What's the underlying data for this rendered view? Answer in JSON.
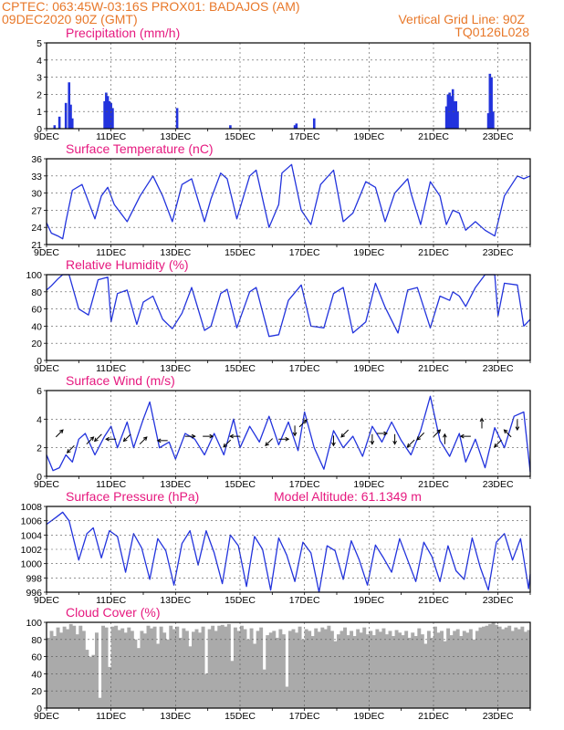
{
  "header": {
    "line1_left": "CPTEC:   063:45W-03:16S   PROX01: BADAJOS (AM)",
    "line2_left": "09DEC2020 90Z (GMT)",
    "line2_right": "Vertical Grid Line: 90Z",
    "line3_right": "TQ0126L028"
  },
  "colors": {
    "header": "#e8782a",
    "title": "#e6197f",
    "series": "#2233dd",
    "cloud": "#aaaaaa"
  },
  "chart_data": [
    {
      "type": "bar",
      "title": "Precipitation (mm/h)",
      "ylim": [
        0,
        5
      ],
      "yticks": [
        "0",
        "1",
        "2",
        "3",
        "4",
        "5"
      ],
      "xticks": [
        "9DEC",
        "11DEC",
        "13DEC",
        "15DEC",
        "17DEC",
        "19DEC",
        "21DEC",
        "23DEC"
      ],
      "x_range": [
        9,
        24
      ],
      "x": [
        9.25,
        9.4,
        9.6,
        9.7,
        9.75,
        9.8,
        10.8,
        10.85,
        10.9,
        10.95,
        11.0,
        11.05,
        13.05,
        14.7,
        16.7,
        16.75,
        17.3,
        21.4,
        21.45,
        21.5,
        21.55,
        21.6,
        21.65,
        21.7,
        21.75,
        22.7,
        22.75,
        22.8,
        22.85
      ],
      "values": [
        0.2,
        0.7,
        1.5,
        2.7,
        1.4,
        0.6,
        1.6,
        2.1,
        1.9,
        1.6,
        1.5,
        1.2,
        1.2,
        0.2,
        0.2,
        0.3,
        0.6,
        1.3,
        2.0,
        2.1,
        1.9,
        2.3,
        1.6,
        1.6,
        1.0,
        0.9,
        3.2,
        3.0,
        1.0
      ]
    },
    {
      "type": "line",
      "title": "Surface Temperature (nC)",
      "ylim": [
        21,
        36
      ],
      "yticks": [
        "21",
        "24",
        "27",
        "30",
        "33",
        "36"
      ],
      "xticks": [
        "9DEC",
        "11DEC",
        "13DEC",
        "15DEC",
        "17DEC",
        "19DEC",
        "21DEC",
        "23DEC"
      ],
      "x_range": [
        9,
        24
      ],
      "x": [
        9.0,
        9.15,
        9.35,
        9.5,
        9.6,
        9.8,
        10.1,
        10.5,
        10.7,
        10.9,
        11.1,
        11.5,
        11.9,
        12.3,
        12.6,
        12.9,
        13.2,
        13.5,
        13.9,
        14.1,
        14.4,
        14.6,
        14.9,
        15.3,
        15.5,
        15.9,
        16.2,
        16.3,
        16.6,
        16.9,
        17.2,
        17.5,
        17.9,
        18.2,
        18.5,
        18.9,
        19.2,
        19.5,
        19.8,
        20.2,
        20.3,
        20.6,
        20.9,
        21.2,
        21.4,
        21.6,
        21.8,
        22.0,
        22.3,
        22.6,
        22.9,
        23.2,
        23.6,
        23.8,
        24.0
      ],
      "values": [
        24.8,
        23.0,
        22.5,
        22.0,
        25.0,
        30.5,
        31.5,
        25.5,
        29.5,
        31.0,
        28.0,
        25.0,
        29.5,
        33.0,
        29.5,
        25.0,
        31.5,
        32.5,
        25.0,
        29.0,
        33.5,
        32.5,
        25.5,
        33.0,
        34.0,
        24.0,
        28.0,
        33.5,
        35.0,
        27.0,
        24.5,
        31.5,
        34.0,
        25.0,
        26.5,
        32.0,
        31.0,
        25.0,
        30.0,
        32.5,
        30.0,
        24.5,
        32.0,
        29.5,
        24.5,
        27.0,
        26.5,
        23.5,
        25.0,
        23.5,
        22.5,
        29.5,
        33.0,
        32.5,
        33.0
      ]
    },
    {
      "type": "line",
      "title": "Relative Humidity (%)",
      "ylim": [
        0,
        100
      ],
      "yticks": [
        "0",
        "20",
        "40",
        "60",
        "80",
        "100"
      ],
      "xticks": [
        "9DEC",
        "11DEC",
        "13DEC",
        "15DEC",
        "17DEC",
        "19DEC",
        "21DEC",
        "23DEC"
      ],
      "x_range": [
        9,
        24
      ],
      "x": [
        9.0,
        9.15,
        9.35,
        9.5,
        9.7,
        9.85,
        10.0,
        10.3,
        10.6,
        10.9,
        11.0,
        11.2,
        11.5,
        11.8,
        12.0,
        12.3,
        12.6,
        12.9,
        13.2,
        13.5,
        13.9,
        14.1,
        14.4,
        14.6,
        14.9,
        15.3,
        15.5,
        15.9,
        16.2,
        16.5,
        16.9,
        17.2,
        17.6,
        17.9,
        18.2,
        18.5,
        18.9,
        19.2,
        19.5,
        19.9,
        20.2,
        20.5,
        20.9,
        21.2,
        21.5,
        21.6,
        21.8,
        22.0,
        22.3,
        22.6,
        22.9,
        23.0,
        23.2,
        23.6,
        23.8,
        24.0
      ],
      "values": [
        82,
        87,
        95,
        100,
        100,
        80,
        60,
        53,
        94,
        97,
        45,
        78,
        82,
        42,
        68,
        75,
        48,
        37,
        55,
        85,
        35,
        40,
        78,
        83,
        38,
        80,
        85,
        28,
        30,
        70,
        88,
        40,
        38,
        78,
        85,
        32,
        45,
        90,
        62,
        32,
        82,
        85,
        38,
        75,
        70,
        80,
        75,
        63,
        85,
        100,
        100,
        52,
        90,
        88,
        40,
        48
      ]
    },
    {
      "type": "line",
      "title": "Surface Wind (m/s)",
      "ylim": [
        0,
        6
      ],
      "yticks": [
        "0",
        "2",
        "4",
        "6"
      ],
      "xticks": [
        "9DEC",
        "11DEC",
        "13DEC",
        "15DEC",
        "17DEC",
        "19DEC",
        "21DEC",
        "23DEC"
      ],
      "x_range": [
        9,
        24
      ],
      "x": [
        9.0,
        9.2,
        9.4,
        9.6,
        9.8,
        10.0,
        10.2,
        10.5,
        10.8,
        11.0,
        11.2,
        11.5,
        11.7,
        12.0,
        12.2,
        12.5,
        12.8,
        13.0,
        13.3,
        13.6,
        13.9,
        14.2,
        14.5,
        14.8,
        15.0,
        15.3,
        15.6,
        15.9,
        16.2,
        16.5,
        16.8,
        17.0,
        17.3,
        17.6,
        17.9,
        18.2,
        18.5,
        18.8,
        19.1,
        19.4,
        19.7,
        20.0,
        20.3,
        20.6,
        20.9,
        21.2,
        21.5,
        21.8,
        22.0,
        22.3,
        22.6,
        22.9,
        23.2,
        23.5,
        23.8,
        24.0
      ],
      "values": [
        1.5,
        0.4,
        0.6,
        1.5,
        1.0,
        2.6,
        3.0,
        1.5,
        2.8,
        3.5,
        2.0,
        3.8,
        2.0,
        4.0,
        5.2,
        2.0,
        2.4,
        1.2,
        3.0,
        2.6,
        1.5,
        3.0,
        1.5,
        4.0,
        2.0,
        3.5,
        2.4,
        4.2,
        2.2,
        3.8,
        1.8,
        4.5,
        2.0,
        0.5,
        3.2,
        2.0,
        2.8,
        1.4,
        3.5,
        2.4,
        3.8,
        2.5,
        1.5,
        3.2,
        5.6,
        2.5,
        1.4,
        3.0,
        1.0,
        2.6,
        0.6,
        3.4,
        2.0,
        4.2,
        4.5,
        0.3
      ],
      "arrows": [
        {
          "x": 9.4,
          "y": 3.0,
          "dir": "ne"
        },
        {
          "x": 9.75,
          "y": 1.9,
          "dir": "sw"
        },
        {
          "x": 10.35,
          "y": 2.5,
          "dir": "ne"
        },
        {
          "x": 10.6,
          "y": 2.7,
          "dir": "sw"
        },
        {
          "x": 11.0,
          "y": 2.6,
          "dir": "w"
        },
        {
          "x": 11.5,
          "y": 2.7,
          "dir": "sw"
        },
        {
          "x": 12.0,
          "y": 2.5,
          "dir": "ne"
        },
        {
          "x": 12.6,
          "y": 2.5,
          "dir": "w"
        },
        {
          "x": 13.45,
          "y": 2.8,
          "dir": "e"
        },
        {
          "x": 14.0,
          "y": 2.8,
          "dir": "e"
        },
        {
          "x": 14.6,
          "y": 2.3,
          "dir": "sw"
        },
        {
          "x": 14.85,
          "y": 2.8,
          "dir": "w"
        },
        {
          "x": 15.9,
          "y": 2.4,
          "dir": "sw"
        },
        {
          "x": 16.35,
          "y": 2.6,
          "dir": "e"
        },
        {
          "x": 16.7,
          "y": 3.2,
          "dir": "s"
        },
        {
          "x": 16.95,
          "y": 3.7,
          "dir": "ne"
        },
        {
          "x": 17.9,
          "y": 2.5,
          "dir": "s"
        },
        {
          "x": 18.25,
          "y": 3.0,
          "dir": "sw"
        },
        {
          "x": 19.1,
          "y": 2.6,
          "dir": "s"
        },
        {
          "x": 19.4,
          "y": 3.0,
          "dir": "e"
        },
        {
          "x": 19.8,
          "y": 2.6,
          "dir": "s"
        },
        {
          "x": 20.3,
          "y": 2.3,
          "dir": "sw"
        },
        {
          "x": 20.6,
          "y": 2.8,
          "dir": "sw"
        },
        {
          "x": 21.1,
          "y": 3.0,
          "dir": "ne"
        },
        {
          "x": 21.35,
          "y": 2.6,
          "dir": "n"
        },
        {
          "x": 22.0,
          "y": 2.8,
          "dir": "w"
        },
        {
          "x": 22.5,
          "y": 3.7,
          "dir": "n"
        },
        {
          "x": 23.0,
          "y": 2.3,
          "dir": "sw"
        },
        {
          "x": 23.3,
          "y": 3.0,
          "dir": "nw"
        },
        {
          "x": 23.6,
          "y": 3.6,
          "dir": "s"
        }
      ]
    },
    {
      "type": "line",
      "title": "Surface Pressure (hPa)",
      "annotation": "Model Altitude: 61.1349 m",
      "ylim": [
        996,
        1008
      ],
      "yticks": [
        "996",
        "998",
        "1000",
        "1002",
        "1004",
        "1006",
        "1008"
      ],
      "xticks": [
        "9DEC",
        "11DEC",
        "13DEC",
        "15DEC",
        "17DEC",
        "19DEC",
        "21DEC",
        "23DEC"
      ],
      "x_range": [
        9,
        24
      ],
      "x": [
        9.0,
        9.3,
        9.5,
        9.7,
        10.0,
        10.25,
        10.45,
        10.7,
        10.95,
        11.2,
        11.45,
        11.7,
        11.95,
        12.2,
        12.45,
        12.7,
        12.95,
        13.2,
        13.45,
        13.7,
        13.95,
        14.2,
        14.45,
        14.7,
        14.95,
        15.2,
        15.45,
        15.7,
        15.95,
        16.2,
        16.45,
        16.7,
        16.95,
        17.2,
        17.45,
        17.7,
        17.95,
        18.2,
        18.45,
        18.7,
        18.95,
        19.2,
        19.45,
        19.7,
        19.95,
        20.2,
        20.45,
        20.7,
        20.95,
        21.2,
        21.45,
        21.7,
        21.95,
        22.2,
        22.45,
        22.7,
        22.95,
        23.2,
        23.45,
        23.7,
        23.95,
        24.0
      ],
      "values": [
        1005.5,
        1006.5,
        1007.2,
        1006.0,
        1000.5,
        1004.2,
        1005.0,
        1000.8,
        1004.6,
        1003.8,
        998.8,
        1004.2,
        1002.2,
        997.8,
        1003.5,
        1001.8,
        997.0,
        1002.8,
        1004.6,
        999.8,
        1004.6,
        1001.5,
        997.2,
        1004.0,
        1002.5,
        996.8,
        1003.8,
        1002.0,
        996.3,
        1003.6,
        1001.2,
        997.5,
        1003.0,
        1001.5,
        996.0,
        1002.5,
        1001.8,
        997.8,
        1003.2,
        1000.5,
        997.0,
        1002.6,
        1000.8,
        998.8,
        1003.5,
        1000.5,
        997.5,
        1003.0,
        1001.0,
        997.5,
        1002.5,
        999.0,
        997.8,
        1003.6,
        999.5,
        996.3,
        1003.0,
        1004.2,
        1000.5,
        1003.5,
        996.5,
        998.5
      ]
    },
    {
      "type": "bar",
      "title": "Cloud Cover (%)",
      "ylim": [
        0,
        100
      ],
      "yticks": [
        "0",
        "20",
        "40",
        "60",
        "80",
        "100"
      ],
      "xticks": [
        "9DEC",
        "11DEC",
        "13DEC",
        "15DEC",
        "17DEC",
        "19DEC",
        "21DEC",
        "23DEC"
      ],
      "x_range": [
        9,
        24
      ],
      "x": [
        9.0,
        9.1,
        9.2,
        9.3,
        9.4,
        9.5,
        9.6,
        9.7,
        9.8,
        9.9,
        10.0,
        10.1,
        10.2,
        10.3,
        10.4,
        10.5,
        10.6,
        10.7,
        10.8,
        10.9,
        11.0,
        11.1,
        11.2,
        11.3,
        11.4,
        11.5,
        11.6,
        11.7,
        11.8,
        11.9,
        12.0,
        12.1,
        12.2,
        12.3,
        12.4,
        12.5,
        12.6,
        12.7,
        12.8,
        12.9,
        13.0,
        13.1,
        13.2,
        13.3,
        13.4,
        13.5,
        13.6,
        13.7,
        13.8,
        13.9,
        14.0,
        14.1,
        14.2,
        14.3,
        14.4,
        14.5,
        14.6,
        14.7,
        14.8,
        14.9,
        15.0,
        15.1,
        15.2,
        15.3,
        15.4,
        15.5,
        15.6,
        15.7,
        15.8,
        15.9,
        16.0,
        16.1,
        16.2,
        16.3,
        16.4,
        16.5,
        16.6,
        16.7,
        16.8,
        16.9,
        17.0,
        17.1,
        17.2,
        17.3,
        17.4,
        17.5,
        17.6,
        17.7,
        17.8,
        17.9,
        18.0,
        18.1,
        18.2,
        18.3,
        18.4,
        18.5,
        18.6,
        18.7,
        18.8,
        18.9,
        19.0,
        19.1,
        19.2,
        19.3,
        19.4,
        19.5,
        19.6,
        19.7,
        19.8,
        19.9,
        20.0,
        20.1,
        20.2,
        20.3,
        20.4,
        20.5,
        20.6,
        20.7,
        20.8,
        20.9,
        21.0,
        21.1,
        21.2,
        21.3,
        21.4,
        21.5,
        21.6,
        21.7,
        21.8,
        21.9,
        22.0,
        22.1,
        22.2,
        22.3,
        22.4,
        22.5,
        22.6,
        22.7,
        22.8,
        22.9,
        23.0,
        23.1,
        23.2,
        23.3,
        23.4,
        23.5,
        23.6,
        23.7,
        23.8,
        23.9
      ],
      "values": [
        82,
        90,
        84,
        94,
        88,
        95,
        92,
        98,
        96,
        86,
        96,
        90,
        68,
        60,
        62,
        88,
        12,
        96,
        94,
        48,
        95,
        96,
        91,
        93,
        88,
        94,
        90,
        80,
        70,
        90,
        87,
        96,
        93,
        95,
        75,
        95,
        88,
        80,
        96,
        92,
        95,
        82,
        93,
        90,
        72,
        89,
        92,
        88,
        95,
        40,
        92,
        96,
        90,
        96,
        97,
        95,
        98,
        55,
        94,
        90,
        96,
        92,
        80,
        93,
        75,
        90,
        94,
        45,
        85,
        88,
        90,
        82,
        92,
        86,
        25,
        90,
        92,
        88,
        95,
        80,
        92,
        90,
        84,
        93,
        89,
        94,
        92,
        96,
        90,
        78,
        86,
        90,
        94,
        85,
        90,
        84,
        92,
        88,
        94,
        86,
        90,
        85,
        92,
        89,
        93,
        86,
        90,
        84,
        91,
        88,
        85,
        90,
        82,
        88,
        84,
        93,
        86,
        75,
        90,
        82,
        95,
        88,
        90,
        78,
        93,
        85,
        90,
        92,
        84,
        90,
        88,
        92,
        80,
        90,
        94,
        95,
        96,
        98,
        100,
        97,
        95,
        92,
        94,
        96,
        90,
        94,
        92,
        95,
        89,
        91
      ]
    }
  ]
}
